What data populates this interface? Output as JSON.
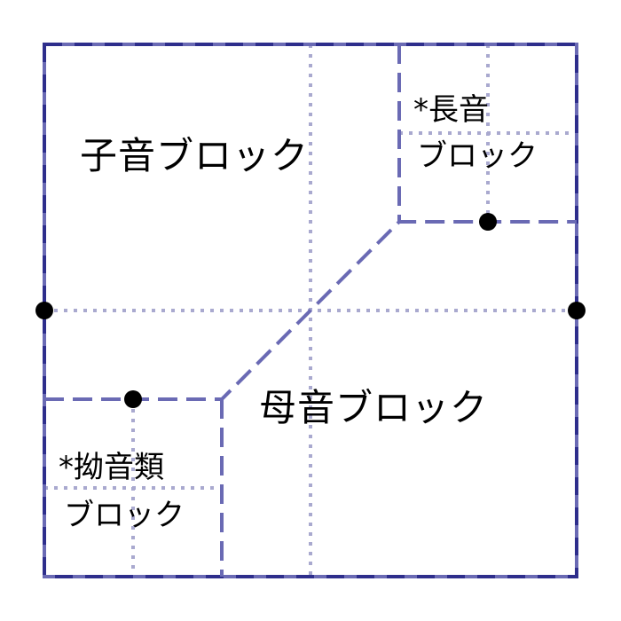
{
  "blocks": {
    "consonant": {
      "label": "子音ブロック"
    },
    "vowel": {
      "label": "母音ブロック"
    },
    "long_vowel": {
      "line1": "*長音",
      "line2": "ブロック"
    },
    "youon": {
      "line1": "*拗音類",
      "line2": "ブロック"
    }
  },
  "colors": {
    "outline": "#2e2e8c",
    "region_border": "#6a6ab4",
    "dotted_grid": "#a9a9cf",
    "node": "#000000"
  }
}
